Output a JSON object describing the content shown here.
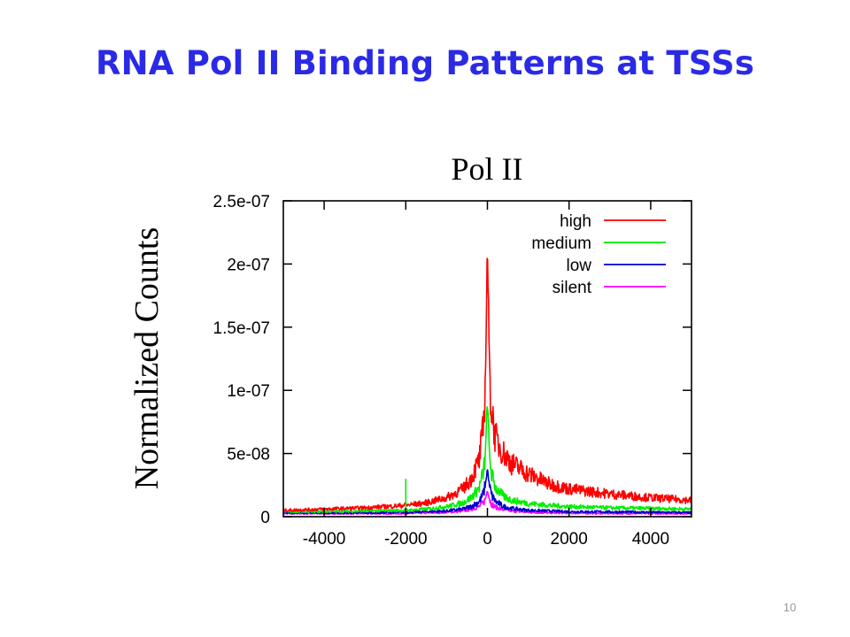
{
  "slide": {
    "title": "RNA Pol II Binding Patterns at TSSs",
    "page_number": "10"
  },
  "chart_data": {
    "type": "line",
    "title": "Pol II",
    "xlabel": "",
    "ylabel": "Normalized Counts",
    "xlim": [
      -5000,
      5000
    ],
    "ylim": [
      0,
      2.5e-07
    ],
    "x_ticks": [
      -4000,
      -2000,
      0,
      2000,
      4000
    ],
    "x_tick_labels": [
      "-4000",
      "-2000",
      "0",
      "2000",
      "4000"
    ],
    "y_ticks": [
      0,
      5e-08,
      1e-07,
      1.5e-07,
      2e-07,
      2.5e-07
    ],
    "y_tick_labels": [
      "0",
      "5e-08",
      "1e-07",
      "1.5e-07",
      "2e-07",
      "2.5e-07"
    ],
    "grid": false,
    "legend_position": "top-right",
    "x": [
      -5000,
      -4000,
      -3000,
      -2000,
      -1500,
      -1000,
      -600,
      -400,
      -200,
      -100,
      -50,
      0,
      50,
      100,
      200,
      400,
      600,
      1000,
      1500,
      2000,
      3000,
      4000,
      5000
    ],
    "series": [
      {
        "name": "high",
        "color": "#ff0000",
        "values": [
          5e-09,
          6e-09,
          7e-09,
          9e-09,
          1.1e-08,
          1.5e-08,
          2.2e-08,
          3e-08,
          4.5e-08,
          7e-08,
          1.1e-07,
          2.16e-07,
          1.2e-07,
          8.5e-08,
          6.2e-08,
          5e-08,
          4.2e-08,
          3.4e-08,
          2.6e-08,
          2.2e-08,
          1.8e-08,
          1.5e-08,
          1.3e-08
        ]
      },
      {
        "name": "medium",
        "color": "#00ee00",
        "values": [
          4e-09,
          4e-09,
          4.5e-09,
          5e-09,
          6e-09,
          8e-09,
          1.1e-08,
          1.5e-08,
          2.3e-08,
          3.5e-08,
          5e-08,
          9.3e-08,
          5e-08,
          3.4e-08,
          2.3e-08,
          1.6e-08,
          1.3e-08,
          1.05e-08,
          9e-09,
          8e-09,
          7e-09,
          6.5e-09,
          6e-09
        ]
      },
      {
        "name": "low",
        "color": "#0000cc",
        "values": [
          3e-09,
          3e-09,
          3e-09,
          3.5e-09,
          4e-09,
          4.5e-09,
          6e-09,
          8e-09,
          1.2e-08,
          1.8e-08,
          2.5e-08,
          3.8e-08,
          2.4e-08,
          1.7e-08,
          1.2e-08,
          8e-09,
          6.5e-09,
          5e-09,
          4.5e-09,
          4e-09,
          3.8e-09,
          3.5e-09,
          3.2e-09
        ]
      },
      {
        "name": "silent",
        "color": "#ff00ff",
        "values": [
          2.5e-09,
          2.5e-09,
          2.5e-09,
          2.5e-09,
          3e-09,
          3.5e-09,
          4.5e-09,
          6e-09,
          8e-09,
          1.1e-08,
          1.4e-08,
          2.1e-08,
          1.4e-08,
          1e-08,
          7.5e-09,
          5.5e-09,
          4.5e-09,
          3.5e-09,
          3e-09,
          2.8e-09,
          2.6e-09,
          2.5e-09,
          2.5e-09
        ]
      }
    ],
    "annotations": [
      {
        "series": "medium",
        "x": -2000,
        "y": 3e-08,
        "note": "spike"
      }
    ]
  }
}
